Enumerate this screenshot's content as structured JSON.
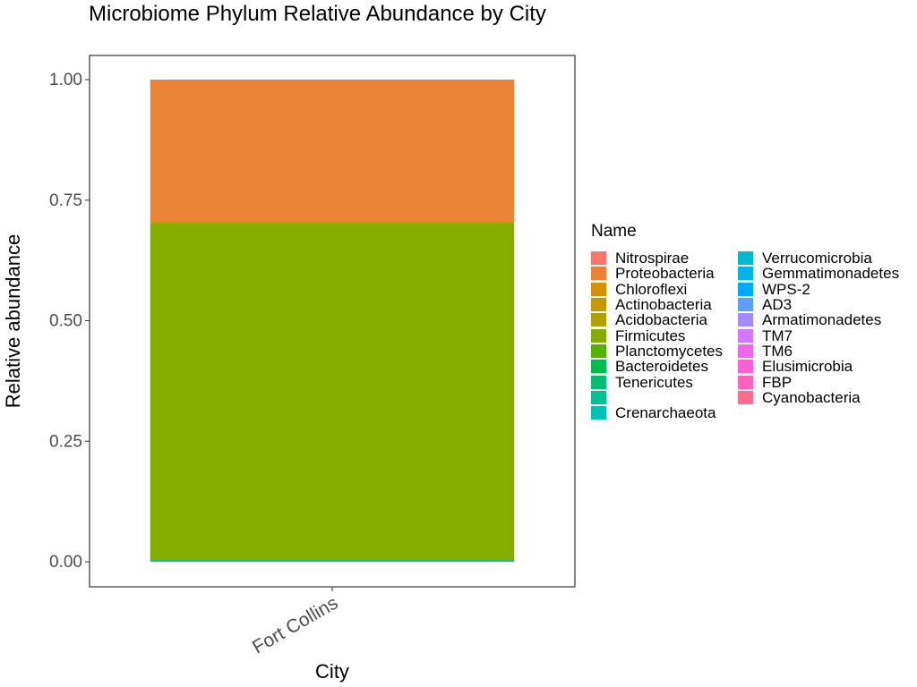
{
  "chart_data": {
    "type": "bar",
    "stacked": true,
    "title": "Microbiome Phylum Relative Abundance by City",
    "xlabel": "City",
    "ylabel": "Relative abundance",
    "categories": [
      "Fort Collins"
    ],
    "ylim": [
      0,
      1
    ],
    "yticks": [
      "0.00",
      "0.25",
      "0.50",
      "0.75",
      "1.00"
    ],
    "grid": false,
    "legend_title": "Name",
    "legend_placement": "right",
    "series": [
      {
        "name": "Nitrospirae",
        "color": "#F8766D",
        "values": [
          0.0
        ]
      },
      {
        "name": "Proteobacteria",
        "color": "#EB8335",
        "values": [
          0.294
        ]
      },
      {
        "name": "Chloroflexi",
        "color": "#D69100",
        "values": [
          0.0
        ]
      },
      {
        "name": "Actinobacteria",
        "color": "#C49A00",
        "values": [
          0.0
        ]
      },
      {
        "name": "Acidobacteria",
        "color": "#AEA200",
        "values": [
          0.003
        ]
      },
      {
        "name": "Firmicutes",
        "color": "#86AC00",
        "values": [
          0.698
        ]
      },
      {
        "name": "Planctomycetes",
        "color": "#53B400",
        "values": [
          0.0
        ]
      },
      {
        "name": "Bacteroidetes",
        "color": "#00BB4E",
        "values": [
          0.001
        ]
      },
      {
        "name": "Tenericutes",
        "color": "#00BE71",
        "values": [
          0.0
        ]
      },
      {
        "name": "",
        "color": "#00C094",
        "values": [
          0.002
        ]
      },
      {
        "name": "Crenarchaeota",
        "color": "#00BFB4",
        "values": [
          0.001
        ]
      },
      {
        "name": "Verrucomicrobia",
        "color": "#00BBD0",
        "values": [
          0.0
        ]
      },
      {
        "name": "Gemmatimonadetes",
        "color": "#00B4E8",
        "values": [
          0.0
        ]
      },
      {
        "name": "WPS-2",
        "color": "#00A8FF",
        "values": [
          0.0
        ]
      },
      {
        "name": "AD3",
        "color": "#619CFF",
        "values": [
          0.0
        ]
      },
      {
        "name": "Armatimonadetes",
        "color": "#A58AFF",
        "values": [
          0.0
        ]
      },
      {
        "name": "TM7",
        "color": "#D277FF",
        "values": [
          0.0
        ]
      },
      {
        "name": "TM6",
        "color": "#EF67EB",
        "values": [
          0.0
        ]
      },
      {
        "name": "Elusimicrobia",
        "color": "#FB61D7",
        "values": [
          0.0
        ]
      },
      {
        "name": "FBP",
        "color": "#FF62BC",
        "values": [
          0.0
        ]
      },
      {
        "name": "Cyanobacteria",
        "color": "#FF6C91",
        "values": [
          0.001
        ]
      }
    ]
  }
}
